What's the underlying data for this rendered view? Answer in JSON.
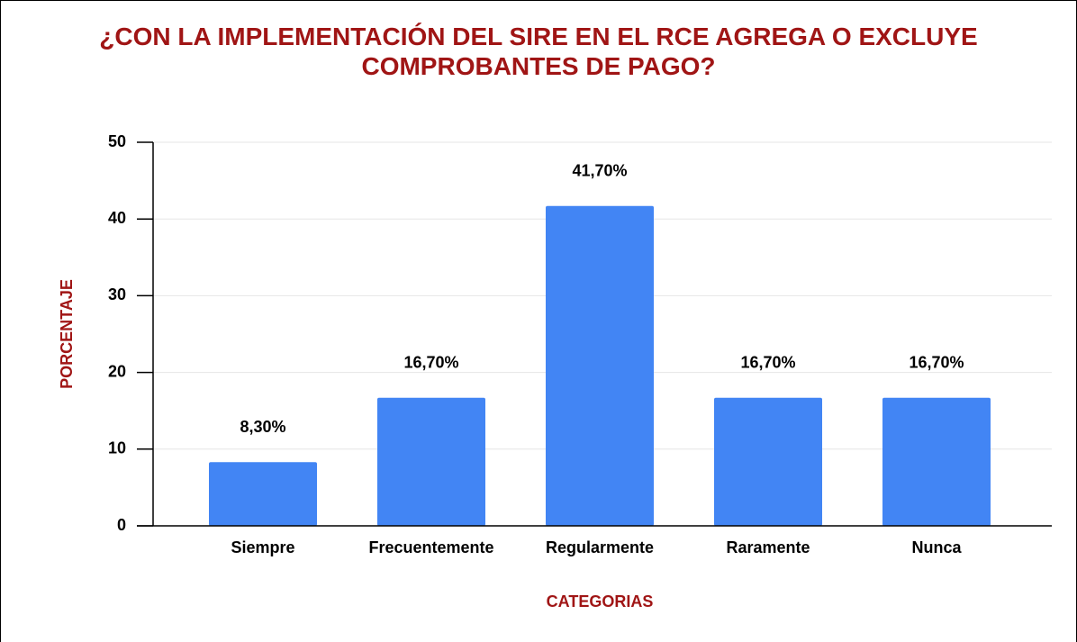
{
  "chart_data": {
    "type": "bar",
    "title": "¿CON LA IMPLEMENTACIÓN DEL SIRE EN EL RCE AGREGA O EXCLUYE COMPROBANTES DE PAGO?",
    "x_label": "CATEGORIAS",
    "y_label": "PORCENTAJE",
    "categories": [
      "Siempre",
      "Frecuentemente",
      "Regularmente",
      "Raramente",
      "Nunca"
    ],
    "values": [
      8.3,
      16.7,
      41.7,
      16.7,
      16.7
    ],
    "value_labels": [
      "8,30%",
      "16,70%",
      "41,70%",
      "16,70%",
      "16,70%"
    ],
    "color": "#4285f4",
    "ylim": [
      0,
      50
    ],
    "yticks": [
      0,
      10,
      20,
      30,
      40,
      50
    ],
    "grid": true
  }
}
